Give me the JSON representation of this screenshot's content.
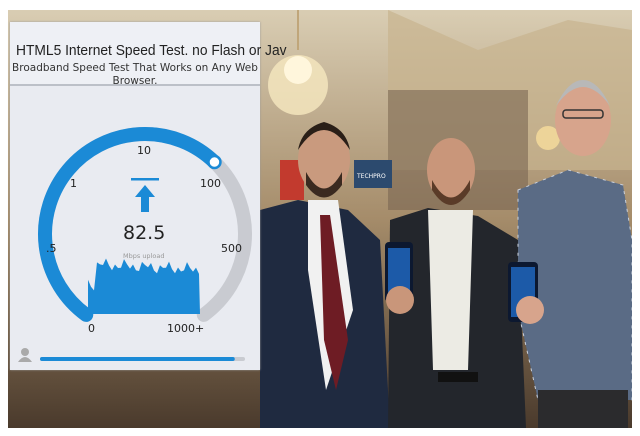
{
  "speed_test": {
    "title": "HTML5 Internet Speed Test. no Flash or Jav",
    "subtitle": "Broadband Speed Test That Works on Any Web Browser.",
    "gauge_labels": [
      "0",
      ".5",
      "1",
      "10",
      "100",
      "500",
      "1000+"
    ],
    "value": "82.5",
    "unit": "Mbps upload",
    "direction_icon": "arrow-up-icon",
    "accent_color": "#1b8ad6",
    "track_color": "#c9cbd1",
    "bottom_progress": 0.95
  },
  "photo": {
    "sign_text": "TECHPRO"
  }
}
